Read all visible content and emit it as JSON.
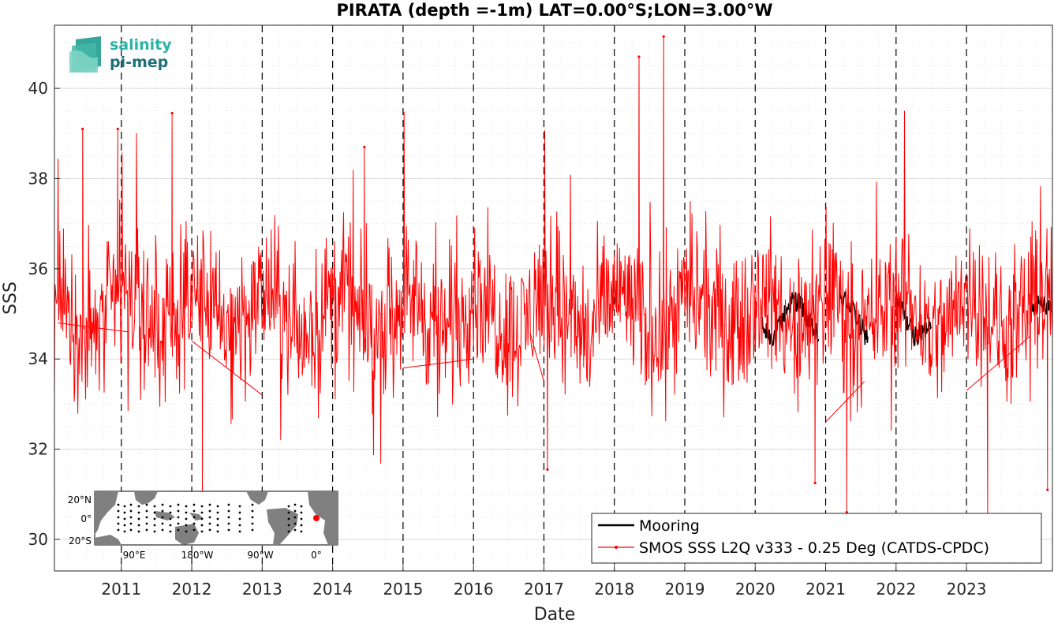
{
  "logo": {
    "line1": "salinity",
    "line2": "pi-mep",
    "color1": "#2ab3a6",
    "color2": "#1f6f78"
  },
  "inset_map": {
    "lat_labels": [
      "20°N",
      "0°",
      "20°S"
    ],
    "lon_labels": [
      "90°E",
      "180°W",
      "90°W",
      "0°"
    ],
    "land_color": "#808080",
    "ocean_color": "#ffffff",
    "site_marker_color": "#ff0000"
  },
  "colors": {
    "smos": "#ff0000",
    "mooring": "#000000",
    "grid": "#d9d9d9",
    "year_line": "#000000"
  },
  "chart_data": {
    "type": "line",
    "title": "PIRATA (depth =-1m) LAT=0.00°S;LON=3.00°W",
    "xlabel": "Date",
    "ylabel": "SSS",
    "xlim": [
      2010.05,
      2024.22
    ],
    "ylim": [
      29.3,
      41.4
    ],
    "yticks": [
      30,
      32,
      34,
      36,
      38,
      40
    ],
    "xticks": [
      2011,
      2012,
      2013,
      2014,
      2015,
      2016,
      2017,
      2018,
      2019,
      2020,
      2021,
      2022,
      2023
    ],
    "xtick_labels": [
      "2011",
      "2012",
      "2013",
      "2014",
      "2015",
      "2016",
      "2017",
      "2018",
      "2019",
      "2020",
      "2021",
      "2022",
      "2023"
    ],
    "year_lines": [
      2011,
      2012,
      2013,
      2014,
      2015,
      2016,
      2017,
      2018,
      2019,
      2020,
      2021,
      2022,
      2023
    ],
    "grid": true,
    "minor_grid": true,
    "legend_position": "bottom-right",
    "series": [
      {
        "name": "Mooring",
        "style": "solid black line",
        "note_segments": [
          [
            2020.1,
            2020.9
          ],
          [
            2021.2,
            2021.6
          ],
          [
            2022.0,
            2022.5
          ],
          [
            2023.9,
            2024.2
          ]
        ],
        "mean": 34.9,
        "amplitude": 0.5
      },
      {
        "name": "SMOS SSS L2Q v333 - 0.25 Deg (CATDS-CPDC)",
        "style": "red line with dot markers",
        "x_range": [
          2010.05,
          2024.22
        ],
        "mean": 35.0,
        "typical_range": [
          32.5,
          37.0
        ],
        "extremes": [
          {
            "x": 2010.45,
            "y": 39.1
          },
          {
            "x": 2010.95,
            "y": 39.1
          },
          {
            "x": 2011.72,
            "y": 39.45
          },
          {
            "x": 2012.15,
            "y": 31.0
          },
          {
            "x": 2014.45,
            "y": 38.7
          },
          {
            "x": 2017.05,
            "y": 31.55
          },
          {
            "x": 2018.35,
            "y": 40.7
          },
          {
            "x": 2018.7,
            "y": 41.15
          },
          {
            "x": 2020.85,
            "y": 31.25
          },
          {
            "x": 2021.3,
            "y": 30.6
          },
          {
            "x": 2023.3,
            "y": 30.5
          },
          {
            "x": 2024.15,
            "y": 31.1
          }
        ],
        "gap_segments": [
          {
            "x": [
              2010.1,
              2011.1
            ],
            "y": [
              34.8,
              34.6
            ]
          },
          {
            "x": [
              2012.0,
              2013.0
            ],
            "y": [
              34.4,
              33.2
            ]
          },
          {
            "x": [
              2015.0,
              2016.0
            ],
            "y": [
              33.8,
              34.0
            ]
          },
          {
            "x": [
              2016.8,
              2017.0
            ],
            "y": [
              34.6,
              33.5
            ]
          },
          {
            "x": [
              2021.0,
              2021.55
            ],
            "y": [
              32.6,
              33.5
            ]
          },
          {
            "x": [
              2023.0,
              2023.9
            ],
            "y": [
              33.3,
              34.5
            ]
          }
        ]
      }
    ]
  }
}
